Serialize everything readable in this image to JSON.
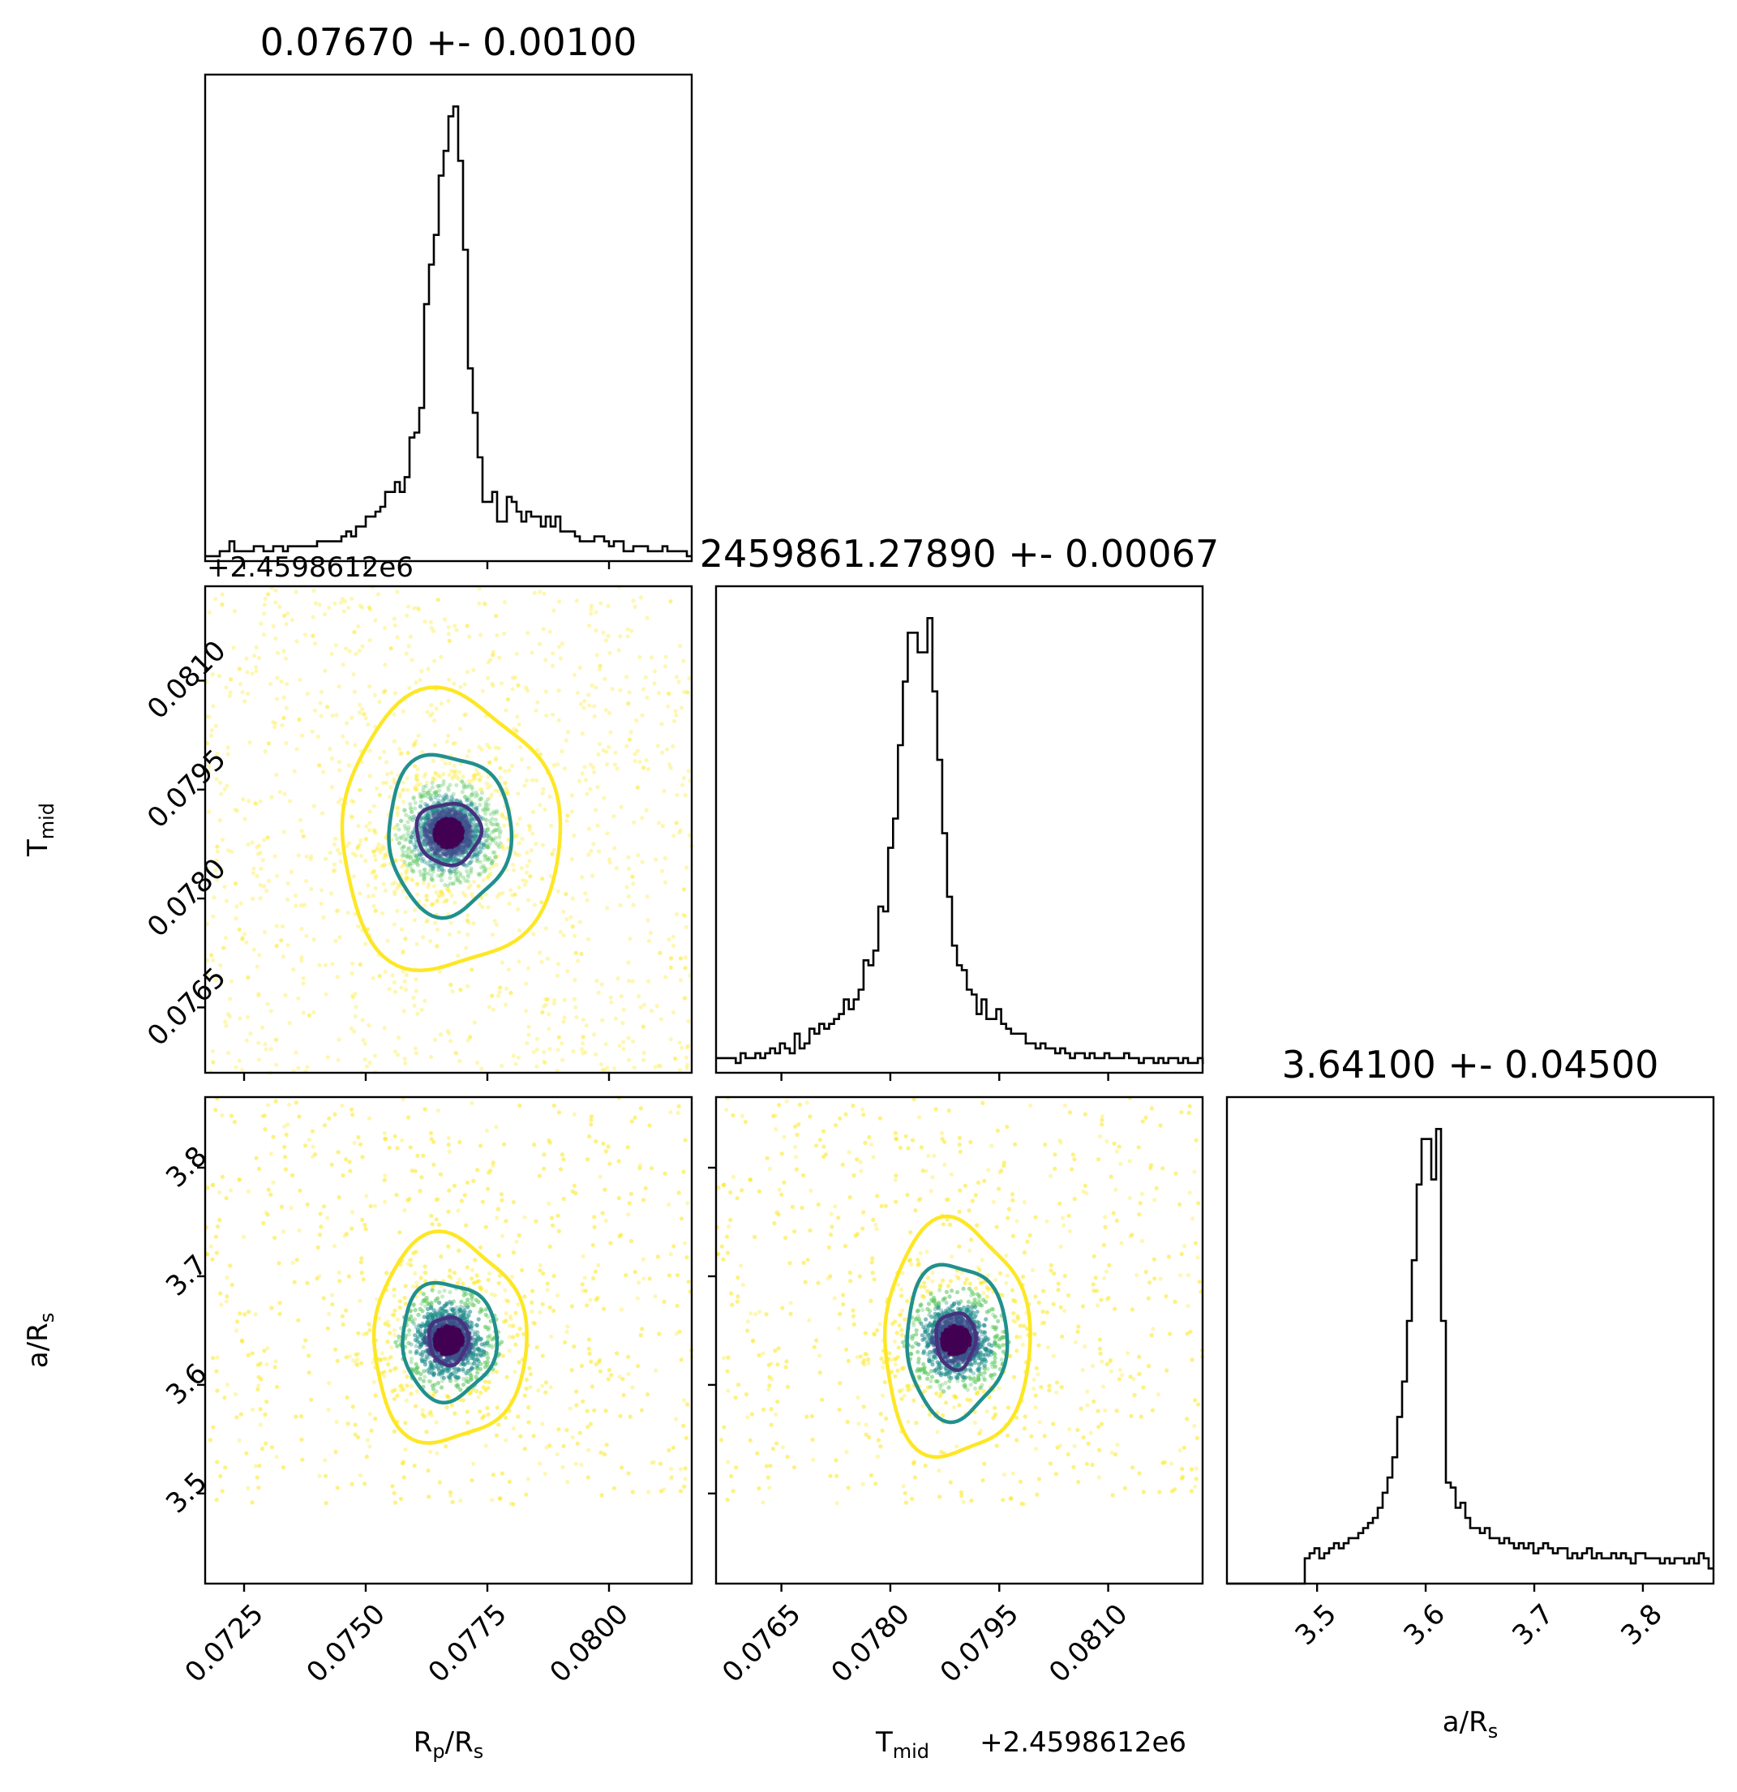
{
  "chart_data": {
    "type": "scatter",
    "kind": "corner-plot",
    "parameters": [
      {
        "key": "rp",
        "label": "R",
        "label_sub": "p",
        "label_rest": "/R",
        "label_sub2": "s",
        "title": "0.07670 +- 0.00100",
        "center": 0.0767,
        "range": [
          0.0717,
          0.0817
        ],
        "ticks": [
          "0.0725",
          "0.0750",
          "0.0775",
          "0.0800"
        ],
        "tick_values": [
          0.0725,
          0.075,
          0.0775,
          0.08
        ]
      },
      {
        "key": "tmid",
        "label": "T",
        "label_sub": "mid",
        "label_rest": "",
        "label_sub2": "",
        "title": "2459861.27890 +- 0.00067",
        "center": 0.0789,
        "range": [
          0.0756,
          0.0823
        ],
        "offset_text": "+2.4598612e6",
        "ticks": [
          "0.0765",
          "0.0780",
          "0.0795",
          "0.0810"
        ],
        "tick_values": [
          0.0765,
          0.078,
          0.0795,
          0.081
        ]
      },
      {
        "key": "ars",
        "label": "a/R",
        "label_sub": "s",
        "label_rest": "",
        "label_sub2": "",
        "title": "3.64100 +- 0.04500",
        "center": 3.641,
        "range": [
          3.417,
          3.865
        ],
        "ticks": [
          "3.5",
          "3.6",
          "3.7",
          "3.8"
        ],
        "tick_values": [
          3.5,
          3.6,
          3.7,
          3.8
        ]
      }
    ],
    "histograms": [
      {
        "param": "rp",
        "bin_start": 0.0717,
        "bin_width": 0.0001,
        "counts": [
          1,
          1,
          1,
          2,
          2,
          4,
          2,
          2,
          2,
          2,
          3,
          3,
          2,
          2,
          3,
          3,
          2,
          3,
          3,
          3,
          3,
          3,
          3,
          4,
          4,
          4,
          4,
          4,
          5,
          6,
          5,
          7,
          7,
          9,
          9,
          10,
          11,
          14,
          14,
          16,
          14,
          17,
          25,
          26,
          31,
          52,
          60,
          66,
          78,
          83,
          90,
          92,
          81,
          63,
          39,
          30,
          21,
          12,
          12,
          14,
          8,
          8,
          13,
          12,
          10,
          8,
          10,
          9,
          9,
          7,
          9,
          7,
          9,
          6,
          6,
          6,
          5,
          4,
          4,
          4,
          5,
          5,
          4,
          3,
          4,
          4,
          2,
          2,
          3,
          3,
          3,
          2,
          2,
          2,
          3,
          2,
          2,
          2,
          2,
          1
        ]
      },
      {
        "param": "tmid",
        "bin_start": 0.0756,
        "bin_width": 6.77e-05,
        "counts": [
          3,
          3,
          3,
          3,
          2,
          4,
          3,
          3,
          4,
          3,
          4,
          5,
          4,
          6,
          5,
          4,
          8,
          5,
          6,
          9,
          8,
          10,
          9,
          10,
          11,
          12,
          15,
          13,
          15,
          17,
          23,
          22,
          25,
          34,
          33,
          46,
          52,
          67,
          80,
          90,
          90,
          86,
          86,
          93,
          78,
          64,
          49,
          36,
          26,
          22,
          21,
          17,
          16,
          12,
          15,
          11,
          11,
          13,
          10,
          9,
          8,
          8,
          8,
          6,
          6,
          5,
          6,
          5,
          5,
          4,
          5,
          4,
          3,
          4,
          4,
          3,
          4,
          3,
          3,
          4,
          3,
          3,
          3,
          4,
          3,
          3,
          2,
          3,
          3,
          2,
          3,
          2,
          3,
          3,
          2,
          3,
          2,
          2,
          3,
          2
        ]
      },
      {
        "param": "ars",
        "bin_start": 3.417,
        "bin_width": 0.00448,
        "counts": [
          0,
          0,
          0,
          0,
          0,
          0,
          0,
          0,
          0,
          0,
          0,
          0,
          0,
          0,
          0,
          0,
          5,
          6,
          7,
          5,
          6,
          7,
          8,
          7,
          8,
          9,
          9,
          10,
          11,
          12,
          13,
          15,
          18,
          21,
          25,
          33,
          40,
          52,
          64,
          79,
          88,
          88,
          80,
          90,
          52,
          20,
          19,
          15,
          16,
          13,
          11,
          11,
          10,
          11,
          9,
          9,
          8,
          9,
          8,
          7,
          8,
          7,
          8,
          6,
          7,
          8,
          7,
          6,
          7,
          7,
          5,
          6,
          5,
          6,
          7,
          5,
          6,
          5,
          5,
          6,
          5,
          6,
          5,
          4,
          6,
          6,
          5,
          5,
          5,
          4,
          5,
          4,
          5,
          5,
          4,
          5,
          4,
          6,
          5,
          3
        ]
      }
    ],
    "scatter_pairs": [
      {
        "x": "rp",
        "y": "tmid",
        "n_points": 4000
      },
      {
        "x": "rp",
        "y": "ars",
        "n_points": 4000
      },
      {
        "x": "tmid",
        "y": "ars",
        "n_points": 4000
      }
    ],
    "contour_levels": [
      {
        "name": "inner",
        "color": "#46327e"
      },
      {
        "name": "middle",
        "color": "#21908d"
      },
      {
        "name": "outer",
        "color": "#fde725"
      }
    ],
    "contours": [
      {
        "x": "rp",
        "y": "tmid",
        "rings": [
          {
            "level": "inner",
            "rx": 0.00066,
            "ry": 0.00042
          },
          {
            "level": "middle",
            "rx": 0.00126,
            "ry": 0.0011
          },
          {
            "level": "outer",
            "rx": 0.00224,
            "ry": 0.0019
          }
        ]
      },
      {
        "x": "rp",
        "y": "ars",
        "rings": [
          {
            "level": "inner",
            "rx": 0.0004,
            "ry": 0.022
          },
          {
            "level": "middle",
            "rx": 0.00097,
            "ry": 0.054
          },
          {
            "level": "outer",
            "rx": 0.00157,
            "ry": 0.095
          }
        ]
      },
      {
        "x": "tmid",
        "y": "ars",
        "rings": [
          {
            "level": "inner",
            "rx": 0.00027,
            "ry": 0.026
          },
          {
            "level": "middle",
            "rx": 0.00069,
            "ry": 0.071
          },
          {
            "level": "outer",
            "rx": 0.001,
            "ry": 0.108
          }
        ]
      }
    ],
    "point_colors": [
      "#440154",
      "#3b528b",
      "#21908d",
      "#5ec962",
      "#fde725"
    ],
    "grid": false,
    "legend": "none"
  }
}
